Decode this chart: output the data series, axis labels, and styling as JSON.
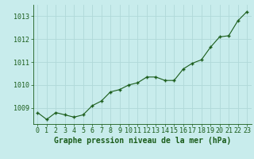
{
  "x": [
    0,
    1,
    2,
    3,
    4,
    5,
    6,
    7,
    8,
    9,
    10,
    11,
    12,
    13,
    14,
    15,
    16,
    17,
    18,
    19,
    20,
    21,
    22,
    23
  ],
  "y": [
    1008.8,
    1008.5,
    1008.8,
    1008.7,
    1008.6,
    1008.7,
    1009.1,
    1009.3,
    1009.7,
    1009.8,
    1010.0,
    1010.1,
    1010.35,
    1010.35,
    1010.2,
    1010.2,
    1010.7,
    1010.95,
    1011.1,
    1011.65,
    1012.1,
    1012.15,
    1012.8,
    1013.2
  ],
  "line_color": "#1a5c1a",
  "marker_color": "#1a5c1a",
  "bg_color": "#c8ecec",
  "grid_color": "#b0d8d8",
  "xlabel": "Graphe pression niveau de la mer (hPa)",
  "ylim": [
    1008.3,
    1013.5
  ],
  "yticks": [
    1009,
    1010,
    1011,
    1012,
    1013
  ],
  "ytick_labels": [
    "1009",
    "1010",
    "1011",
    "1012",
    "1013"
  ],
  "xticks": [
    0,
    1,
    2,
    3,
    4,
    5,
    6,
    7,
    8,
    9,
    10,
    11,
    12,
    13,
    14,
    15,
    16,
    17,
    18,
    19,
    20,
    21,
    22,
    23
  ],
  "tick_fontsize": 6,
  "label_fontsize": 7
}
